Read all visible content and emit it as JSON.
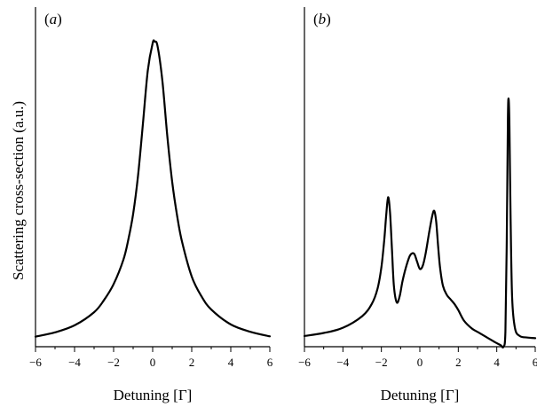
{
  "ylabel": "Scattering cross-section (a.u.)",
  "chart_data": [
    {
      "panel_label": "(a)",
      "type": "line",
      "xlabel": "Detuning [Γ]",
      "xlim": [
        -6,
        6
      ],
      "ylim": [
        0,
        1.02
      ],
      "xticks": [
        "−6",
        "−4",
        "−2",
        "0",
        "2",
        "4",
        "6"
      ],
      "series": [
        {
          "x": [
            -6,
            -5,
            -4,
            -3,
            -2.5,
            -2,
            -1.5,
            -1.25,
            -1,
            -0.75,
            -0.5,
            -0.25,
            0,
            0.1,
            0.25,
            0.5,
            0.75,
            1,
            1.25,
            1.5,
            2,
            2.5,
            3,
            4,
            5,
            6
          ],
          "y": [
            0.033,
            0.047,
            0.07,
            0.113,
            0.152,
            0.205,
            0.285,
            0.35,
            0.435,
            0.56,
            0.73,
            0.905,
            0.995,
            1.0,
            0.985,
            0.87,
            0.69,
            0.54,
            0.43,
            0.345,
            0.23,
            0.165,
            0.122,
            0.073,
            0.049,
            0.034
          ]
        }
      ]
    },
    {
      "panel_label": "(b)",
      "type": "line",
      "xlabel": "Detuning [Γ]",
      "xlim": [
        -6,
        6
      ],
      "ylim": [
        0,
        1.02
      ],
      "xticks": [
        "−6",
        "−4",
        "−2",
        "0",
        "2",
        "4",
        "6"
      ],
      "series": [
        {
          "x": [
            -6,
            -5,
            -4,
            -3,
            -2.5,
            -2.2,
            -2.0,
            -1.85,
            -1.75,
            -1.65,
            -1.55,
            -1.45,
            -1.35,
            -1.2,
            -1.05,
            -0.9,
            -0.7,
            -0.5,
            -0.3,
            -0.15,
            0,
            0.15,
            0.3,
            0.5,
            0.65,
            0.75,
            0.85,
            0.95,
            1.05,
            1.2,
            1.4,
            1.6,
            1.8,
            2.0,
            2.3,
            2.7,
            3.1,
            3.5,
            3.9,
            4.2,
            4.35,
            4.45,
            4.52,
            4.58,
            4.62,
            4.66,
            4.72,
            4.8,
            4.95,
            5.2,
            5.6,
            6
          ],
          "y": [
            0.035,
            0.045,
            0.062,
            0.1,
            0.14,
            0.19,
            0.26,
            0.35,
            0.43,
            0.49,
            0.44,
            0.32,
            0.2,
            0.145,
            0.165,
            0.215,
            0.265,
            0.3,
            0.305,
            0.28,
            0.255,
            0.265,
            0.305,
            0.38,
            0.43,
            0.445,
            0.41,
            0.33,
            0.26,
            0.2,
            0.17,
            0.155,
            0.14,
            0.12,
            0.085,
            0.06,
            0.045,
            0.03,
            0.015,
            0.005,
            0.0,
            0.05,
            0.35,
            0.75,
            0.81,
            0.72,
            0.42,
            0.16,
            0.06,
            0.035,
            0.03,
            0.028
          ]
        }
      ]
    }
  ]
}
